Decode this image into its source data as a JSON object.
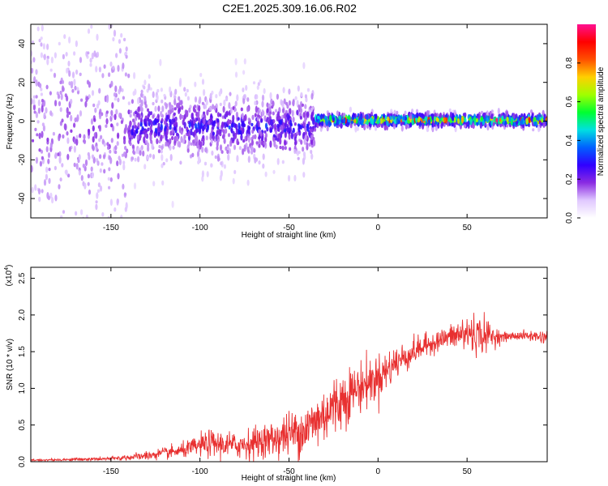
{
  "title": "C2E1.2025.309.16.06.R02",
  "colors": {
    "snr_line": "#e83030",
    "background_plot": "#ffffff",
    "axis": "#000000",
    "colorbar": [
      "#ffffff",
      "#e0c8ff",
      "#8a2be2",
      "#3000ff",
      "#0060ff",
      "#00e0e0",
      "#00ff30",
      "#a0ff00",
      "#ffd000",
      "#ff5000",
      "#ff0000",
      "#ff1090"
    ]
  },
  "chart_data": [
    {
      "type": "heatmap",
      "title": "C2E1.2025.309.16.06.R02",
      "xlabel": "Height of straight line (km)",
      "ylabel": "Frequency (Hz)",
      "xlim": [
        -195,
        95
      ],
      "ylim": [
        -50,
        50
      ],
      "xticks": [
        -150,
        -100,
        -50,
        0,
        50
      ],
      "xtick_labels": [
        "-150",
        "-100",
        "-50",
        "0",
        "50"
      ],
      "yticks": [
        -40,
        -20,
        0,
        20,
        40
      ],
      "ytick_labels": [
        "-40",
        "-20",
        "0",
        "20",
        "40"
      ],
      "colorbar": {
        "label": "Normalized spectral amplitude",
        "range": [
          0.0,
          1.0
        ],
        "ticks": [
          0.0,
          0.2,
          0.4,
          0.6,
          0.8
        ],
        "tick_labels": [
          "0.0",
          "0.2",
          "0.4",
          "0.6",
          "0.8"
        ]
      },
      "description_regions": [
        {
          "x_range": [
            -195,
            -140
          ],
          "freq_center": -4,
          "freq_spread": 40,
          "amplitude": 0.15
        },
        {
          "x_range": [
            -140,
            -35
          ],
          "freq_center": -3,
          "freq_spread": 10,
          "amplitude": 0.3
        },
        {
          "x_range": [
            -35,
            95
          ],
          "freq_center": 0.5,
          "freq_spread": 1.5,
          "amplitude": 0.95
        }
      ]
    },
    {
      "type": "line",
      "xlabel": "Height of straight line (km)",
      "ylabel": "SNR (10 * v/v)",
      "y_multiplier_label": "(x10",
      "y_multiplier_exp": "4",
      "y_multiplier_close": ")",
      "xlim": [
        -195,
        95
      ],
      "ylim": [
        0,
        2.65
      ],
      "xticks": [
        -150,
        -100,
        -50,
        0,
        50
      ],
      "xtick_labels": [
        "-150",
        "-100",
        "-50",
        "0",
        "50"
      ],
      "yticks": [
        0.0,
        0.5,
        1.0,
        1.5,
        2.0,
        2.5
      ],
      "ytick_labels": [
        "0.0",
        "0.5",
        "1.0",
        "1.5",
        "2.0",
        "2.5"
      ],
      "series": [
        {
          "name": "SNR",
          "trend_x": [
            -195,
            -150,
            -130,
            -110,
            -95,
            -80,
            -60,
            -40,
            -25,
            -15,
            0,
            10,
            20,
            30,
            40,
            50,
            60,
            70,
            80,
            95
          ],
          "trend_y": [
            0.02,
            0.04,
            0.08,
            0.15,
            0.25,
            0.22,
            0.3,
            0.45,
            0.75,
            0.95,
            1.15,
            1.35,
            1.5,
            1.62,
            1.7,
            1.75,
            1.72,
            1.7,
            1.72,
            1.7
          ],
          "noise": [
            0.01,
            0.02,
            0.05,
            0.08,
            0.15,
            0.15,
            0.2,
            0.3,
            0.35,
            0.3,
            0.25,
            0.2,
            0.15,
            0.12,
            0.12,
            0.25,
            0.2,
            0.05,
            0.05,
            0.08
          ]
        }
      ]
    }
  ]
}
